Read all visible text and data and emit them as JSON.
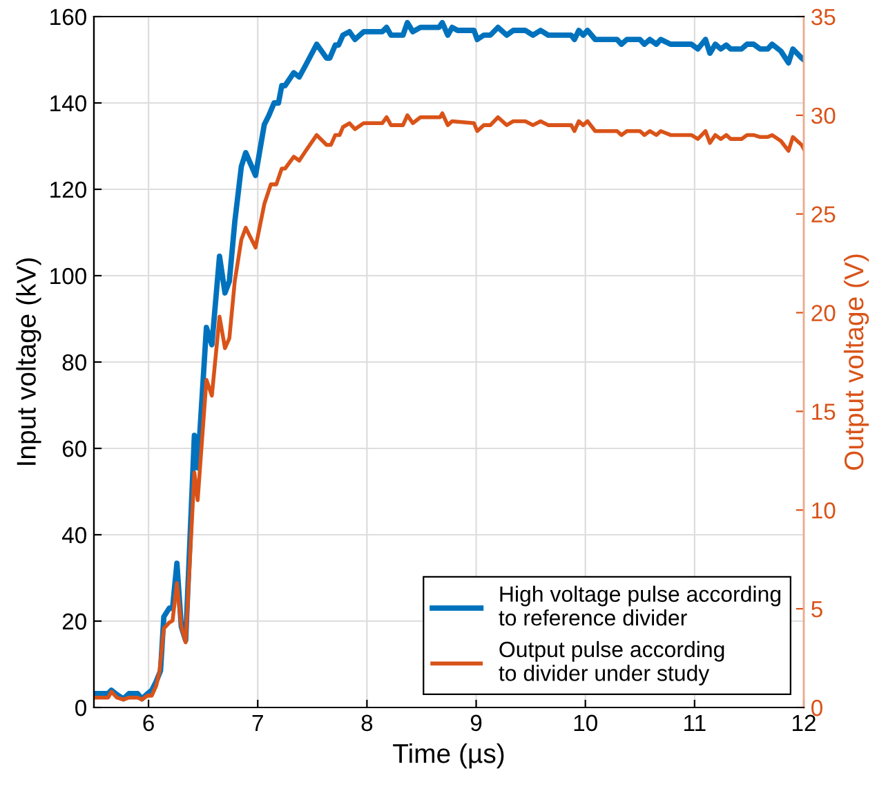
{
  "chart_data": {
    "type": "line",
    "xlabel": "Time (µs)",
    "ylabel": "Input voltage (kV)",
    "y2label": "Output voltage (V)",
    "xlim": [
      5.5,
      12
    ],
    "xticks": [
      6,
      7,
      8,
      9,
      10,
      11,
      12
    ],
    "ylim": [
      0,
      160
    ],
    "yticks": [
      0,
      20,
      40,
      60,
      80,
      100,
      120,
      140,
      160
    ],
    "y2lim": [
      0,
      35
    ],
    "y2ticks": [
      0,
      5,
      10,
      15,
      20,
      25,
      30,
      35
    ],
    "grid": true,
    "legend": "bottom right",
    "marker": "none",
    "line_style": "solid",
    "series": [
      {
        "name": "High voltage pulse according\nto reference divider",
        "color": "#0072bd",
        "x": [
          5.5,
          5.63,
          5.66,
          5.71,
          5.77,
          5.82,
          5.9,
          5.94,
          5.99,
          6.03,
          6.07,
          6.11,
          6.14,
          6.19,
          6.22,
          6.26,
          6.3,
          6.34,
          6.42,
          6.45,
          6.53,
          6.58,
          6.65,
          6.7,
          6.74,
          6.79,
          6.85,
          6.89,
          6.98,
          7.06,
          7.1,
          7.15,
          7.19,
          7.22,
          7.25,
          7.33,
          7.38,
          7.44,
          7.54,
          7.63,
          7.66,
          7.71,
          7.74,
          7.78,
          7.84,
          7.89,
          7.97,
          8.14,
          8.18,
          8.22,
          8.33,
          8.37,
          8.42,
          8.49,
          8.66,
          8.69,
          8.74,
          8.78,
          8.83,
          8.98,
          9.01,
          9.07,
          9.13,
          9.2,
          9.28,
          9.34,
          9.45,
          9.52,
          9.59,
          9.66,
          9.87,
          9.9,
          9.94,
          9.98,
          10.02,
          10.09,
          10.29,
          10.33,
          10.38,
          10.5,
          10.54,
          10.59,
          10.65,
          10.69,
          10.78,
          10.97,
          11.03,
          11.1,
          11.14,
          11.19,
          11.24,
          11.29,
          11.33,
          11.43,
          11.48,
          11.54,
          11.6,
          11.67,
          11.71,
          11.79,
          11.86,
          11.9,
          11.98,
          12
        ],
        "values": [
          3.2,
          3.2,
          4,
          3,
          2,
          3.2,
          3.2,
          2,
          3.2,
          4,
          6,
          8.5,
          21,
          23,
          23,
          33.4,
          18.7,
          15.5,
          63,
          55.5,
          88,
          84,
          104.5,
          96,
          98.7,
          112.5,
          125.3,
          128.5,
          123.2,
          135,
          137,
          140,
          140,
          144,
          144,
          147,
          146,
          148.8,
          153.6,
          150.4,
          150.4,
          153.4,
          153.4,
          155.7,
          156.5,
          154.7,
          156.5,
          156.5,
          157.5,
          155.7,
          155.7,
          158.6,
          156.5,
          157.5,
          157.5,
          158.6,
          155.7,
          157.5,
          156.8,
          156.8,
          154.7,
          155.7,
          155.7,
          157.5,
          155.7,
          156.8,
          156.8,
          155.7,
          156.8,
          155.7,
          155.7,
          154.7,
          156.8,
          155.7,
          156.8,
          154.7,
          154.7,
          153.6,
          154.7,
          154.7,
          153.6,
          154.7,
          153.6,
          154.7,
          153.6,
          153.6,
          152.5,
          154.7,
          151.5,
          153.6,
          152.5,
          153.4,
          152.5,
          152.5,
          153.6,
          153.6,
          152.5,
          152.5,
          153.6,
          152,
          149.3,
          152.5,
          150.4,
          150
        ]
      },
      {
        "name": "Output pulse according\nto divider under study",
        "color": "#d95319",
        "axis": "y2",
        "x": [
          5.5,
          5.63,
          5.66,
          5.71,
          5.77,
          5.82,
          5.9,
          5.94,
          5.99,
          6.03,
          6.07,
          6.1,
          6.14,
          6.19,
          6.22,
          6.26,
          6.3,
          6.34,
          6.42,
          6.45,
          6.53,
          6.58,
          6.65,
          6.7,
          6.74,
          6.79,
          6.85,
          6.89,
          6.98,
          7.06,
          7.12,
          7.17,
          7.22,
          7.25,
          7.33,
          7.38,
          7.44,
          7.54,
          7.63,
          7.67,
          7.71,
          7.75,
          7.78,
          7.84,
          7.89,
          7.97,
          8.14,
          8.18,
          8.22,
          8.33,
          8.37,
          8.42,
          8.49,
          8.67,
          8.69,
          8.74,
          8.78,
          8.98,
          9.01,
          9.07,
          9.13,
          9.2,
          9.28,
          9.34,
          9.45,
          9.52,
          9.59,
          9.66,
          9.87,
          9.9,
          9.94,
          9.98,
          10.02,
          10.09,
          10.29,
          10.33,
          10.38,
          10.5,
          10.54,
          10.59,
          10.65,
          10.69,
          10.78,
          10.97,
          11.03,
          11.1,
          11.14,
          11.19,
          11.24,
          11.29,
          11.33,
          11.43,
          11.48,
          11.54,
          11.6,
          11.67,
          11.71,
          11.79,
          11.86,
          11.9,
          11.98,
          12
        ],
        "values": [
          0.5,
          0.5,
          0.8,
          0.5,
          0.4,
          0.5,
          0.5,
          0.4,
          0.6,
          0.6,
          1.1,
          1.8,
          4,
          4.3,
          4.4,
          6.3,
          4.1,
          3.3,
          11.9,
          10.5,
          16.6,
          15.8,
          19.8,
          18.2,
          18.7,
          21.6,
          23.7,
          24.3,
          23.3,
          25.5,
          26.5,
          26.5,
          27.3,
          27.3,
          27.9,
          27.7,
          28.2,
          29,
          28.5,
          28.5,
          29,
          29,
          29.4,
          29.6,
          29.3,
          29.6,
          29.6,
          29.9,
          29.5,
          29.5,
          30,
          29.6,
          29.9,
          29.9,
          30.1,
          29.5,
          29.7,
          29.6,
          29.2,
          29.5,
          29.5,
          29.9,
          29.5,
          29.7,
          29.7,
          29.5,
          29.7,
          29.5,
          29.5,
          29.2,
          29.7,
          29.5,
          29.7,
          29.2,
          29.2,
          29,
          29.2,
          29.2,
          29,
          29.2,
          29,
          29.2,
          29,
          29,
          28.8,
          29.2,
          28.6,
          29,
          28.8,
          29,
          28.8,
          28.8,
          29,
          29,
          28.9,
          28.9,
          29,
          28.7,
          28.2,
          28.9,
          28.5,
          28.3
        ]
      }
    ]
  }
}
